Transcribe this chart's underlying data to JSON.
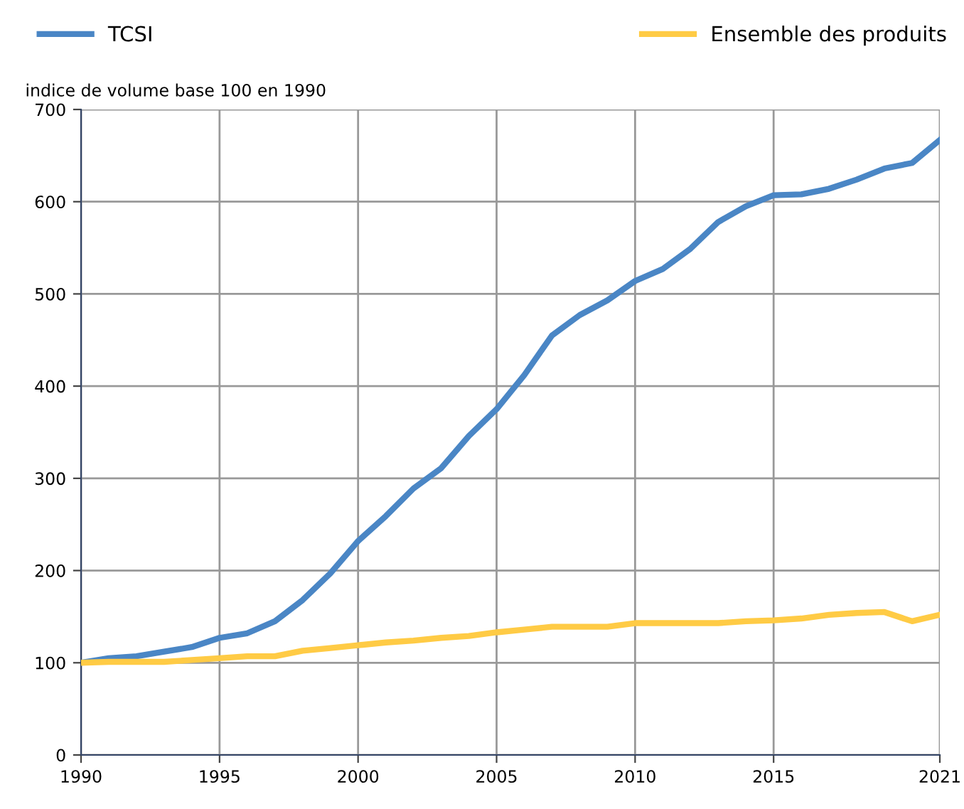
{
  "chart_data": {
    "type": "line",
    "ylabel": "indice de volume base 100 en 1990",
    "x": [
      1990,
      1991,
      1992,
      1993,
      1994,
      1995,
      1996,
      1997,
      1998,
      1999,
      2000,
      2001,
      2002,
      2003,
      2004,
      2005,
      2006,
      2007,
      2008,
      2009,
      2010,
      2011,
      2012,
      2013,
      2014,
      2015,
      2016,
      2017,
      2018,
      2019,
      2020,
      2021
    ],
    "series": [
      {
        "name": "TCSI",
        "color": "#4a86c5",
        "values": [
          100,
          105,
          107,
          112,
          117,
          127,
          132,
          145,
          168,
          197,
          232,
          259,
          289,
          311,
          346,
          375,
          412,
          455,
          477,
          493,
          514,
          527,
          549,
          578,
          595,
          607,
          608,
          614,
          624,
          636,
          642,
          667
        ]
      },
      {
        "name": "Ensemble des produits",
        "color": "#ffcb45",
        "values": [
          100,
          101,
          101,
          101,
          103,
          105,
          107,
          107,
          113,
          116,
          119,
          122,
          124,
          127,
          129,
          133,
          136,
          139,
          139,
          139,
          143,
          143,
          143,
          143,
          145,
          146,
          148,
          152,
          154,
          155,
          145,
          152
        ]
      }
    ],
    "xlim": [
      1990,
      2021
    ],
    "ylim": [
      0,
      700
    ],
    "xticks": [
      1990,
      1995,
      2000,
      2005,
      2010,
      2015,
      2021
    ],
    "yticks": [
      0,
      100,
      200,
      300,
      400,
      500,
      600,
      700
    ],
    "grid": true,
    "legend": "top",
    "marker": "none",
    "line_style": "solid"
  }
}
